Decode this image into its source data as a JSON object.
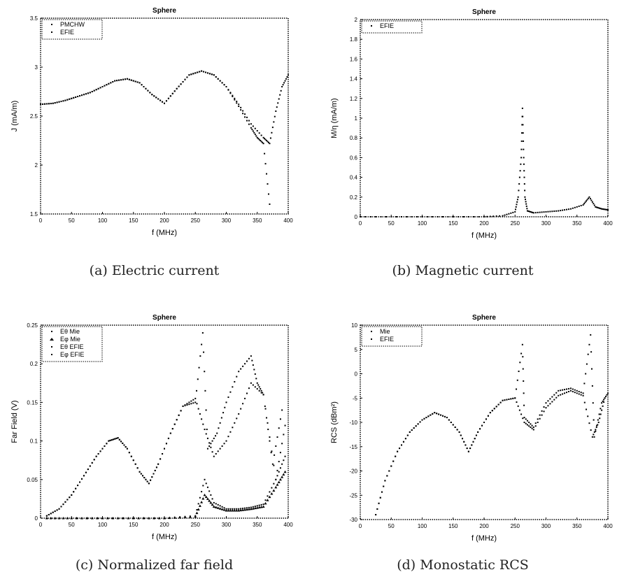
{
  "panels": [
    {
      "caption": "(a) Electric current",
      "title": "Sphere",
      "xlabel": "f (MHz)",
      "ylabel": "J (mA/m)",
      "xticks": [
        "0",
        "50",
        "100",
        "150",
        "200",
        "250",
        "300",
        "350",
        "400"
      ],
      "yticks": [
        "1.5",
        "2",
        "2.5",
        "3",
        "3.5"
      ],
      "legend": [
        "PMCHW",
        "EFIE"
      ]
    },
    {
      "caption": "(b) Magnetic current",
      "title": "Sphere",
      "xlabel": "f (MHz)",
      "ylabel": "M/η (mA/m)",
      "xticks": [
        "0",
        "50",
        "100",
        "150",
        "200",
        "250",
        "300",
        "350",
        "400"
      ],
      "yticks": [
        "0",
        "0.2",
        "0.4",
        "0.6",
        "0.8",
        "1",
        "1.2",
        "1.4",
        "1.6",
        "1.8",
        "2"
      ],
      "legend": [
        "EFIE"
      ]
    },
    {
      "caption": "(c) Normalized far field",
      "title": "Sphere",
      "xlabel": "f (MHz)",
      "ylabel": "Far Field (V)",
      "xticks": [
        "0",
        "50",
        "100",
        "150",
        "200",
        "250",
        "300",
        "350",
        "400"
      ],
      "yticks": [
        "0",
        "0.05",
        "0.1",
        "0.15",
        "0.2",
        "0.25"
      ],
      "legend": [
        "Eθ Mie",
        "Eφ Mie",
        "Eθ EFIE",
        "Eφ EFIE"
      ]
    },
    {
      "caption": "(d) Monostatic RCS",
      "title": "Sphere",
      "xlabel": "f (MHz)",
      "ylabel": "RCS (dBm²)",
      "xticks": [
        "0",
        "50",
        "100",
        "150",
        "200",
        "250",
        "300",
        "350",
        "400"
      ],
      "yticks": [
        "-30",
        "-25",
        "-20",
        "-15",
        "-10",
        "-5",
        "0",
        "5",
        "10"
      ],
      "legend": [
        "Mie",
        "EFIE"
      ]
    }
  ],
  "chart_data": [
    {
      "type": "scatter",
      "title": "Sphere",
      "xlabel": "f (MHz)",
      "ylabel": "J (mA/m)",
      "xlim": [
        0,
        400
      ],
      "ylim": [
        1.5,
        3.5
      ],
      "series": [
        {
          "name": "PMCHW",
          "x": [
            0,
            20,
            40,
            60,
            80,
            100,
            120,
            140,
            160,
            180,
            200,
            220,
            240,
            260,
            280,
            300,
            320,
            340,
            360,
            370,
            380,
            390,
            400
          ],
          "y": [
            2.62,
            2.63,
            2.66,
            2.7,
            2.74,
            2.8,
            2.86,
            2.88,
            2.84,
            2.72,
            2.63,
            2.78,
            2.92,
            2.96,
            2.92,
            2.8,
            2.62,
            2.42,
            2.28,
            2.22,
            2.55,
            2.8,
            2.92
          ]
        },
        {
          "name": "EFIE",
          "x": [
            0,
            20,
            40,
            60,
            80,
            100,
            120,
            140,
            160,
            180,
            200,
            220,
            240,
            260,
            280,
            300,
            320,
            340,
            350,
            360,
            370
          ],
          "y": [
            2.62,
            2.63,
            2.66,
            2.7,
            2.74,
            2.8,
            2.86,
            2.88,
            2.84,
            2.72,
            2.63,
            2.78,
            2.92,
            2.96,
            2.92,
            2.8,
            2.6,
            2.38,
            2.28,
            2.22,
            1.6
          ]
        }
      ]
    },
    {
      "type": "scatter",
      "title": "Sphere",
      "xlabel": "f (MHz)",
      "ylabel": "M/η (mA/m)",
      "xlim": [
        0,
        400
      ],
      "ylim": [
        0,
        2
      ],
      "series": [
        {
          "name": "EFIE",
          "x": [
            0,
            50,
            100,
            150,
            200,
            230,
            250,
            255,
            260,
            262,
            264,
            266,
            270,
            280,
            300,
            320,
            340,
            360,
            370,
            380,
            390,
            400
          ],
          "y": [
            0,
            0,
            0,
            0,
            0,
            0.01,
            0.05,
            0.2,
            0.6,
            1.1,
            0.6,
            0.2,
            0.06,
            0.04,
            0.05,
            0.06,
            0.08,
            0.12,
            0.2,
            0.1,
            0.08,
            0.07
          ]
        }
      ]
    },
    {
      "type": "scatter",
      "title": "Sphere",
      "xlabel": "f (MHz)",
      "ylabel": "Far Field (V)",
      "xlim": [
        0,
        400
      ],
      "ylim": [
        0,
        0.25
      ],
      "series": [
        {
          "name": "Eθ Mie",
          "x": [
            10,
            30,
            50,
            70,
            90,
            110,
            125,
            140,
            160,
            175,
            190,
            210,
            230,
            250,
            265,
            280,
            300,
            320,
            340,
            360,
            380,
            395
          ],
          "y": [
            0.003,
            0.012,
            0.03,
            0.055,
            0.08,
            0.1,
            0.104,
            0.09,
            0.06,
            0.045,
            0.07,
            0.11,
            0.145,
            0.155,
            0.115,
            0.08,
            0.1,
            0.135,
            0.175,
            0.16,
            0.05,
            0.12
          ]
        },
        {
          "name": "Eφ Mie",
          "x": [
            10,
            50,
            100,
            150,
            200,
            250,
            265,
            280,
            300,
            320,
            340,
            360,
            380,
            395
          ],
          "y": [
            0,
            0,
            0,
            0,
            0,
            0.002,
            0.03,
            0.015,
            0.01,
            0.01,
            0.012,
            0.015,
            0.04,
            0.06
          ]
        },
        {
          "name": "Eθ EFIE",
          "x": [
            10,
            30,
            50,
            70,
            90,
            110,
            125,
            140,
            160,
            175,
            190,
            210,
            230,
            250,
            262,
            270,
            285,
            300,
            320,
            340,
            350,
            360,
            375,
            390
          ],
          "y": [
            0.003,
            0.012,
            0.03,
            0.055,
            0.08,
            0.1,
            0.104,
            0.09,
            0.06,
            0.045,
            0.07,
            0.11,
            0.145,
            0.15,
            0.24,
            0.09,
            0.11,
            0.15,
            0.19,
            0.21,
            0.175,
            0.16,
            0.07,
            0.14
          ]
        },
        {
          "name": "Eφ EFIE",
          "x": [
            10,
            50,
            100,
            150,
            200,
            250,
            265,
            280,
            300,
            320,
            340,
            360,
            380,
            395
          ],
          "y": [
            0,
            0,
            0,
            0,
            0,
            0.003,
            0.05,
            0.02,
            0.012,
            0.012,
            0.014,
            0.018,
            0.05,
            0.08
          ]
        }
      ]
    },
    {
      "type": "scatter",
      "title": "Sphere",
      "xlabel": "f (MHz)",
      "ylabel": "RCS (dBm²)",
      "xlim": [
        0,
        400
      ],
      "ylim": [
        -30,
        10
      ],
      "series": [
        {
          "name": "Mie",
          "x": [
            25,
            40,
            60,
            80,
            100,
            120,
            140,
            160,
            175,
            190,
            210,
            230,
            250,
            265,
            280,
            300,
            320,
            340,
            360,
            375,
            385,
            395
          ],
          "y": [
            -29,
            -22,
            -16,
            -12,
            -9.5,
            -8,
            -9,
            -12,
            -16,
            -12,
            -8,
            -5.5,
            -5,
            -10,
            -11.5,
            -7,
            -4.5,
            -3.5,
            -4.5,
            -13,
            -10,
            -5
          ]
        },
        {
          "name": "EFIE",
          "x": [
            25,
            40,
            60,
            80,
            100,
            120,
            140,
            160,
            175,
            190,
            210,
            230,
            250,
            262,
            265,
            280,
            300,
            320,
            340,
            360,
            372,
            378,
            390,
            400
          ],
          "y": [
            -29,
            -22,
            -16,
            -12,
            -9.5,
            -8,
            -9,
            -12,
            -16,
            -12,
            -8,
            -5.5,
            -5,
            6,
            -9,
            -11,
            -6,
            -3.5,
            -3,
            -4,
            8,
            -13,
            -6,
            -4
          ]
        }
      ]
    }
  ]
}
